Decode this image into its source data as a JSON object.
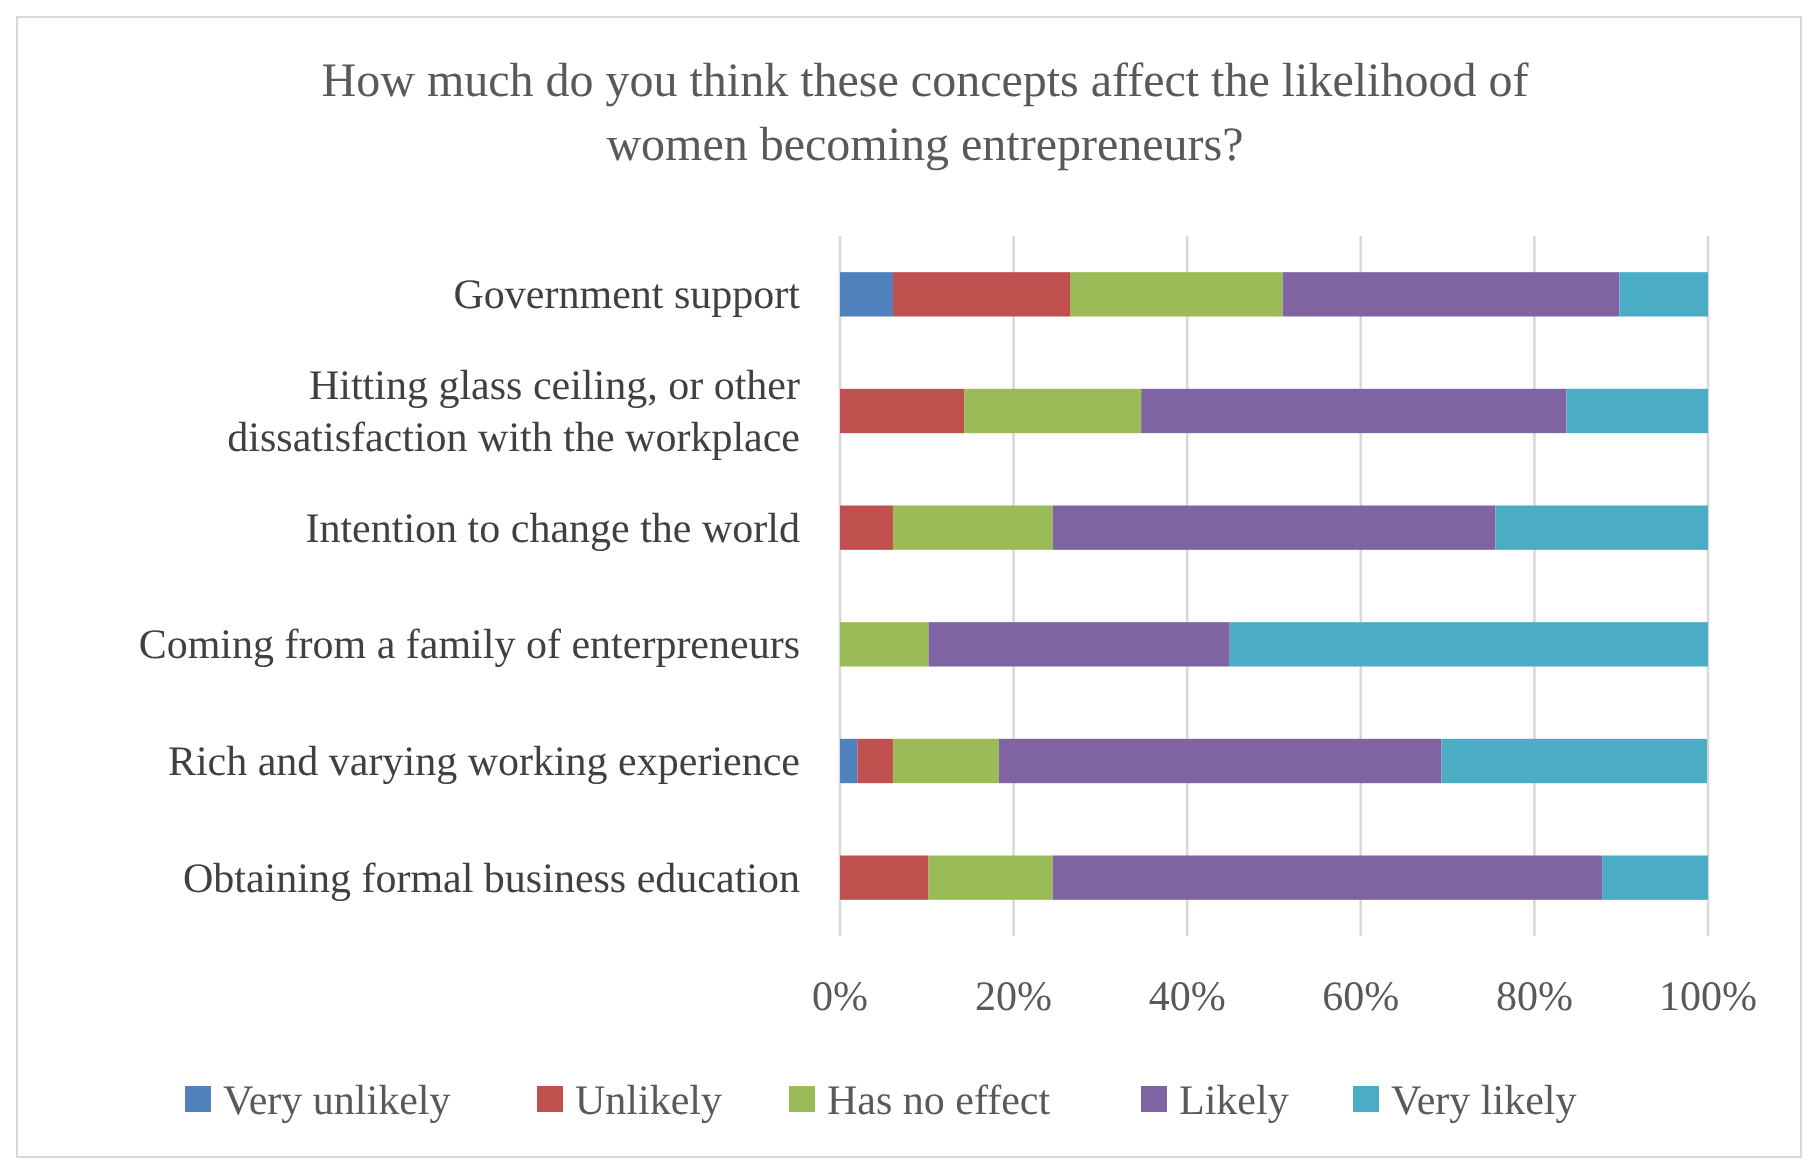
{
  "chart_data": {
    "type": "bar",
    "orientation": "horizontal",
    "stacked": true,
    "title": "How much do you think these concepts affect the likelihood of\nwomen becoming entrepreneurs?",
    "categories": [
      "Government support",
      "Hitting glass ceiling, or other\ndissatisfaction with the workplace",
      "Intention to change the world",
      "Coming from a family of enterpreneurs",
      "Rich and varying working experience",
      "Obtaining formal business education"
    ],
    "series": [
      {
        "name": "Very unlikely",
        "color": "#4f81bd",
        "values": [
          6.1,
          0,
          0,
          0,
          2.0,
          0
        ]
      },
      {
        "name": "Unlikely",
        "color": "#c0504d",
        "values": [
          20.4,
          14.3,
          6.1,
          0,
          4.1,
          10.2
        ]
      },
      {
        "name": "Has no effect",
        "color": "#9bbb59",
        "values": [
          24.5,
          20.4,
          18.4,
          10.2,
          12.2,
          14.3
        ]
      },
      {
        "name": "Likely",
        "color": "#8064a2",
        "values": [
          38.8,
          49.0,
          51.0,
          34.7,
          51.0,
          63.3
        ]
      },
      {
        "name": "Very likely",
        "color": "#4bacc6",
        "values": [
          10.2,
          16.3,
          24.5,
          55.1,
          30.6,
          12.2
        ]
      }
    ],
    "xlim": [
      0,
      100
    ],
    "xticks": [
      {
        "value": 0,
        "label": "0%"
      },
      {
        "value": 20,
        "label": "20%"
      },
      {
        "value": 40,
        "label": "40%"
      },
      {
        "value": 60,
        "label": "60%"
      },
      {
        "value": 80,
        "label": "80%"
      },
      {
        "value": 100,
        "label": "100%"
      }
    ],
    "grid": "x",
    "legend": "bottom"
  }
}
